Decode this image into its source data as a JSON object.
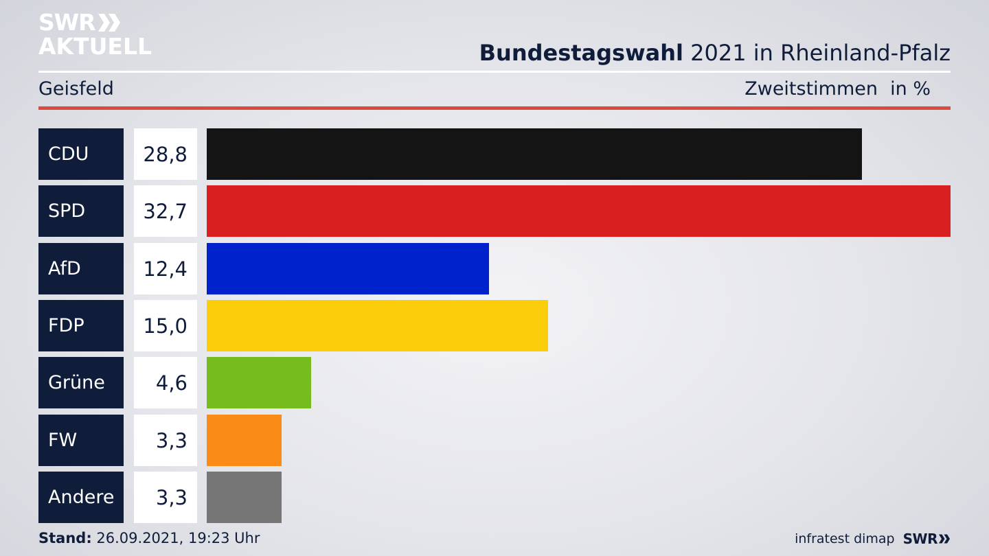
{
  "header": {
    "logo_line1": "SWR",
    "logo_line2": "AKTUELL",
    "title_bold": "Bundestagswahl",
    "title_rest": " 2021 in Rheinland-Pfalz",
    "region": "Geisfeld",
    "measure": "Zweitstimmen",
    "unit": "in %"
  },
  "chart_data": {
    "type": "bar",
    "orientation": "horizontal",
    "categories": [
      "CDU",
      "SPD",
      "AfD",
      "FDP",
      "Grüne",
      "FW",
      "Andere"
    ],
    "values": [
      28.8,
      32.7,
      12.4,
      15.0,
      4.6,
      3.3,
      3.3
    ],
    "value_labels": [
      "28,8",
      "32,7",
      "12,4",
      "15,0",
      "4,6",
      "3,3",
      "3,3"
    ],
    "colors": [
      "#141414",
      "#d82020",
      "#0022cc",
      "#fccd0b",
      "#77bc1f",
      "#fb8b17",
      "#767676"
    ],
    "xlim": [
      0,
      32.7
    ]
  },
  "footer": {
    "stand_label": "Stand:",
    "stand_value": " 26.09.2021, 19:23 Uhr",
    "source": "infratest dimap",
    "brand": "SWR"
  }
}
